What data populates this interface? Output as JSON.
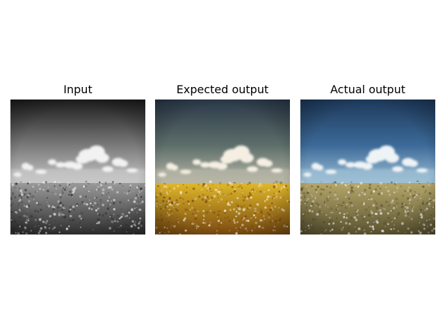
{
  "figure": {
    "panels": [
      {
        "title": "Input",
        "style": "grayscale",
        "colors": {
          "sky_top": "#1c1c1c",
          "sky_mid": "#7a7a7a",
          "horizon": "#c8c8c8",
          "field": "#9a9a9a",
          "field_dark": "#2e2e2e",
          "cloud": "#f2f2f2"
        }
      },
      {
        "title": "Expected output",
        "style": "rapeseed-field",
        "colors": {
          "sky_top": "#2b3a4a",
          "sky_mid": "#5d6e6a",
          "horizon": "#b8b7a8",
          "field": "#e0b82a",
          "field_dark": "#7a4a10",
          "cloud": "#f4efe2"
        }
      },
      {
        "title": "Actual output",
        "style": "blue-sky",
        "colors": {
          "sky_top": "#1e3a5c",
          "sky_mid": "#3c6a98",
          "horizon": "#9fc0d6",
          "field": "#b5a76a",
          "field_dark": "#5a5230",
          "cloud": "#eef3f6"
        }
      }
    ]
  }
}
